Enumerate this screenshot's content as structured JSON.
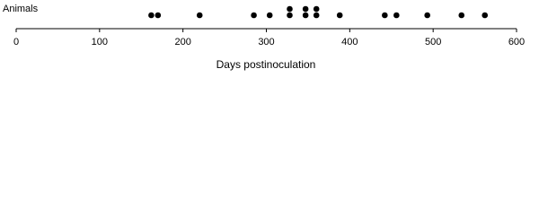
{
  "chart_data": {
    "type": "dot",
    "label": "Animals",
    "xlabel": "Days postinoculation",
    "x": [
      162,
      170,
      220,
      285,
      304,
      328,
      328,
      347,
      347,
      360,
      360,
      388,
      442,
      456,
      493,
      534,
      562
    ],
    "color": "#000000",
    "xlim": [
      0,
      600
    ],
    "xticks": [
      0,
      100,
      200,
      300,
      400,
      500,
      600
    ]
  }
}
